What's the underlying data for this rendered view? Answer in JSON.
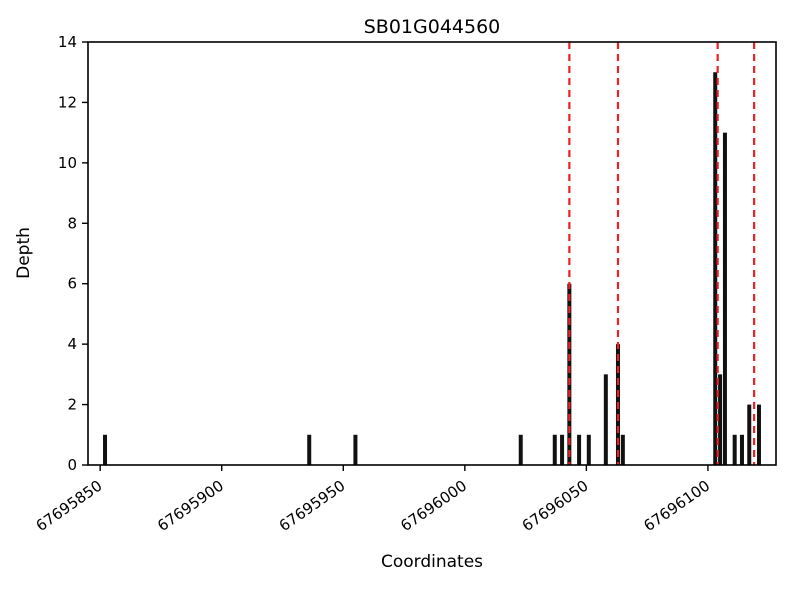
{
  "chart_data": {
    "type": "bar",
    "title": "SB01G044560",
    "xlabel": "Coordinates",
    "ylabel": "Depth",
    "xlim": [
      67695845,
      67696128
    ],
    "ylim": [
      0,
      14
    ],
    "xticks": [
      67695850,
      67695900,
      67695950,
      67696000,
      67696050,
      67696100
    ],
    "yticks": [
      0,
      2,
      4,
      6,
      8,
      10,
      12,
      14
    ],
    "grid": false,
    "legend": "none",
    "bar_color": "#111111",
    "bars": [
      {
        "coordinate": 67695852,
        "depth": 1
      },
      {
        "coordinate": 67695936,
        "depth": 1
      },
      {
        "coordinate": 67695955,
        "depth": 1
      },
      {
        "coordinate": 67696023,
        "depth": 1
      },
      {
        "coordinate": 67696037,
        "depth": 1
      },
      {
        "coordinate": 67696040,
        "depth": 1
      },
      {
        "coordinate": 67696043,
        "depth": 6
      },
      {
        "coordinate": 67696047,
        "depth": 1
      },
      {
        "coordinate": 67696051,
        "depth": 1
      },
      {
        "coordinate": 67696058,
        "depth": 3
      },
      {
        "coordinate": 67696063,
        "depth": 4
      },
      {
        "coordinate": 67696065,
        "depth": 1
      },
      {
        "coordinate": 67696103,
        "depth": 13
      },
      {
        "coordinate": 67696105,
        "depth": 3
      },
      {
        "coordinate": 67696107,
        "depth": 11
      },
      {
        "coordinate": 67696111,
        "depth": 1
      },
      {
        "coordinate": 67696114,
        "depth": 1
      },
      {
        "coordinate": 67696117,
        "depth": 2
      },
      {
        "coordinate": 67696121,
        "depth": 2
      }
    ],
    "vlines": {
      "style": "dashed",
      "color": "#ed2024",
      "positions": [
        67696043,
        67696063,
        67696104,
        67696119
      ]
    }
  }
}
